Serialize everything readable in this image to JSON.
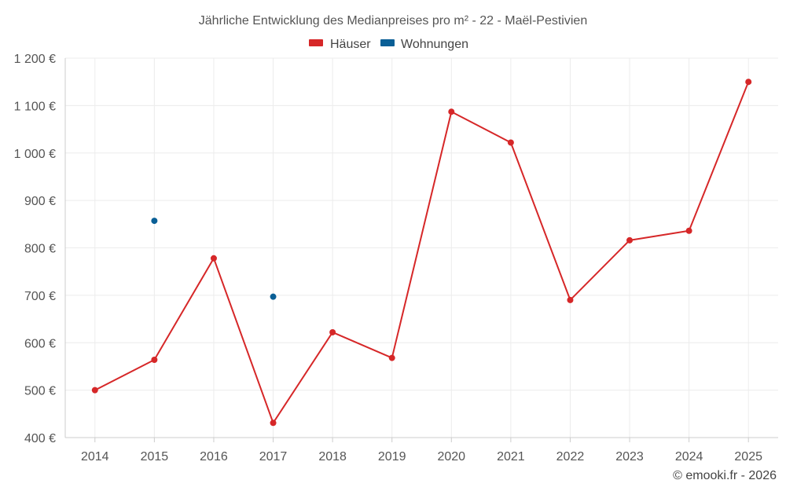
{
  "chart_data": {
    "type": "line",
    "title": "Jährliche Entwicklung des Medianpreises pro m² - 22 - Maël-Pestivien",
    "categories": [
      "2014",
      "2015",
      "2016",
      "2017",
      "2018",
      "2019",
      "2020",
      "2021",
      "2022",
      "2023",
      "2024",
      "2025"
    ],
    "ylim": [
      400,
      1200
    ],
    "yticks": [
      400,
      500,
      600,
      700,
      800,
      900,
      1000,
      1100,
      1200
    ],
    "ytick_labels": [
      "400 €",
      "500 €",
      "600 €",
      "700 €",
      "800 €",
      "900 €",
      "1 000 €",
      "1 100 €",
      "1 200 €"
    ],
    "legend_position": "top-center",
    "grid": true,
    "series": [
      {
        "name": "Häuser",
        "color": "#d62728",
        "values": [
          500,
          564,
          778,
          431,
          622,
          568,
          1087,
          1022,
          690,
          816,
          836,
          1150
        ]
      },
      {
        "name": "Wohnungen",
        "color": "#0a5f96",
        "values": [
          null,
          857,
          null,
          697,
          null,
          null,
          null,
          null,
          null,
          null,
          null,
          null
        ]
      }
    ]
  },
  "credit": "© emooki.fr - 2026"
}
